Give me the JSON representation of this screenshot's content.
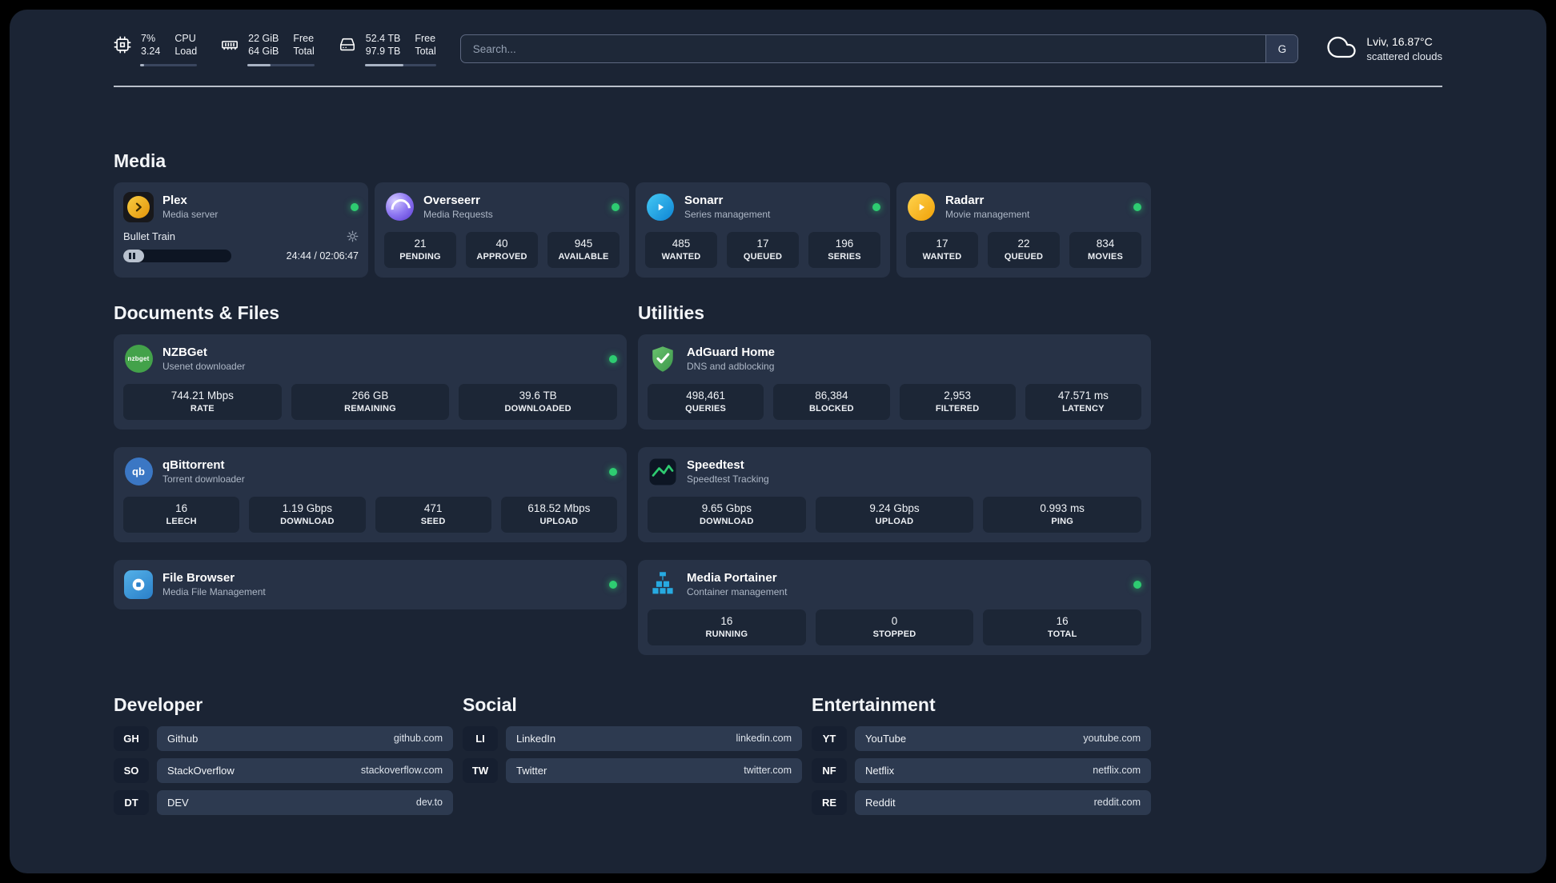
{
  "colors": {
    "accent_green": "#2ecc71",
    "background": "#1b2434",
    "card": "#273246",
    "tile": "#1c2636"
  },
  "system": {
    "cpu": {
      "value1": "7%",
      "value2": "3.24",
      "label1": "CPU",
      "label2": "Load",
      "progress": 7
    },
    "memory": {
      "value1": "22 GiB",
      "value2": "64 GiB",
      "label1": "Free",
      "label2": "Total",
      "progress": 34
    },
    "storage": {
      "value1": "52.4 TB",
      "value2": "97.9 TB",
      "label1": "Free",
      "label2": "Total",
      "progress": 54
    }
  },
  "search": {
    "placeholder": "Search...",
    "engine_label": "G"
  },
  "weather": {
    "location": "Lviv, 16.87°C",
    "condition": "scattered clouds",
    "icon": "cloud-icon"
  },
  "sections": {
    "media": "Media",
    "documents": "Documents & Files",
    "utilities": "Utilities",
    "developer": "Developer",
    "social": "Social",
    "entertainment": "Entertainment"
  },
  "apps": {
    "plex": {
      "name": "Plex",
      "subtitle": "Media server",
      "icon": "plex-icon",
      "online": true,
      "now_playing": {
        "title": "Bullet Train",
        "time": "24:44 / 02:06:47",
        "progress": 19
      }
    },
    "overseerr": {
      "name": "Overseerr",
      "subtitle": "Media Requests",
      "icon": "overseerr-icon",
      "online": true,
      "stats": [
        {
          "value": "21",
          "label": "PENDING"
        },
        {
          "value": "40",
          "label": "APPROVED"
        },
        {
          "value": "945",
          "label": "AVAILABLE"
        }
      ]
    },
    "sonarr": {
      "name": "Sonarr",
      "subtitle": "Series management",
      "icon": "sonarr-icon",
      "online": true,
      "stats": [
        {
          "value": "485",
          "label": "WANTED"
        },
        {
          "value": "17",
          "label": "QUEUED"
        },
        {
          "value": "196",
          "label": "SERIES"
        }
      ]
    },
    "radarr": {
      "name": "Radarr",
      "subtitle": "Movie management",
      "icon": "radarr-icon",
      "online": true,
      "stats": [
        {
          "value": "17",
          "label": "WANTED"
        },
        {
          "value": "22",
          "label": "QUEUED"
        },
        {
          "value": "834",
          "label": "MOVIES"
        }
      ]
    },
    "nzbget": {
      "name": "NZBGet",
      "subtitle": "Usenet downloader",
      "icon": "nzbget-icon",
      "icon_text": "nzbget",
      "online": true,
      "stats": [
        {
          "value": "744.21 Mbps",
          "label": "RATE"
        },
        {
          "value": "266 GB",
          "label": "REMAINING"
        },
        {
          "value": "39.6 TB",
          "label": "DOWNLOADED"
        }
      ]
    },
    "qbittorrent": {
      "name": "qBittorrent",
      "subtitle": "Torrent downloader",
      "icon": "qbittorrent-icon",
      "icon_text": "qb",
      "online": true,
      "stats": [
        {
          "value": "16",
          "label": "LEECH"
        },
        {
          "value": "1.19 Gbps",
          "label": "DOWNLOAD"
        },
        {
          "value": "471",
          "label": "SEED"
        },
        {
          "value": "618.52 Mbps",
          "label": "UPLOAD"
        }
      ]
    },
    "filebrowser": {
      "name": "File Browser",
      "subtitle": "Media File Management",
      "icon": "filebrowser-icon",
      "online": true
    },
    "adguard": {
      "name": "AdGuard Home",
      "subtitle": "DNS and adblocking",
      "icon": "adguard-icon",
      "stats": [
        {
          "value": "498,461",
          "label": "QUERIES"
        },
        {
          "value": "86,384",
          "label": "BLOCKED"
        },
        {
          "value": "2,953",
          "label": "FILTERED"
        },
        {
          "value": "47.571 ms",
          "label": "LATENCY"
        }
      ]
    },
    "speedtest": {
      "name": "Speedtest",
      "subtitle": "Speedtest Tracking",
      "icon": "speedtest-icon",
      "stats": [
        {
          "value": "9.65 Gbps",
          "label": "DOWNLOAD"
        },
        {
          "value": "9.24 Gbps",
          "label": "UPLOAD"
        },
        {
          "value": "0.993 ms",
          "label": "PING"
        }
      ]
    },
    "portainer": {
      "name": "Media Portainer",
      "subtitle": "Container management",
      "icon": "portainer-icon",
      "online": true,
      "stats": [
        {
          "value": "16",
          "label": "RUNNING"
        },
        {
          "value": "0",
          "label": "STOPPED"
        },
        {
          "value": "16",
          "label": "TOTAL"
        }
      ]
    }
  },
  "bookmarks": {
    "developer": [
      {
        "abbr": "GH",
        "name": "Github",
        "url": "github.com"
      },
      {
        "abbr": "SO",
        "name": "StackOverflow",
        "url": "stackoverflow.com"
      },
      {
        "abbr": "DT",
        "name": "DEV",
        "url": "dev.to"
      }
    ],
    "social": [
      {
        "abbr": "LI",
        "name": "LinkedIn",
        "url": "linkedin.com"
      },
      {
        "abbr": "TW",
        "name": "Twitter",
        "url": "twitter.com"
      }
    ],
    "entertainment": [
      {
        "abbr": "YT",
        "name": "YouTube",
        "url": "youtube.com"
      },
      {
        "abbr": "NF",
        "name": "Netflix",
        "url": "netflix.com"
      },
      {
        "abbr": "RE",
        "name": "Reddit",
        "url": "reddit.com"
      }
    ]
  }
}
